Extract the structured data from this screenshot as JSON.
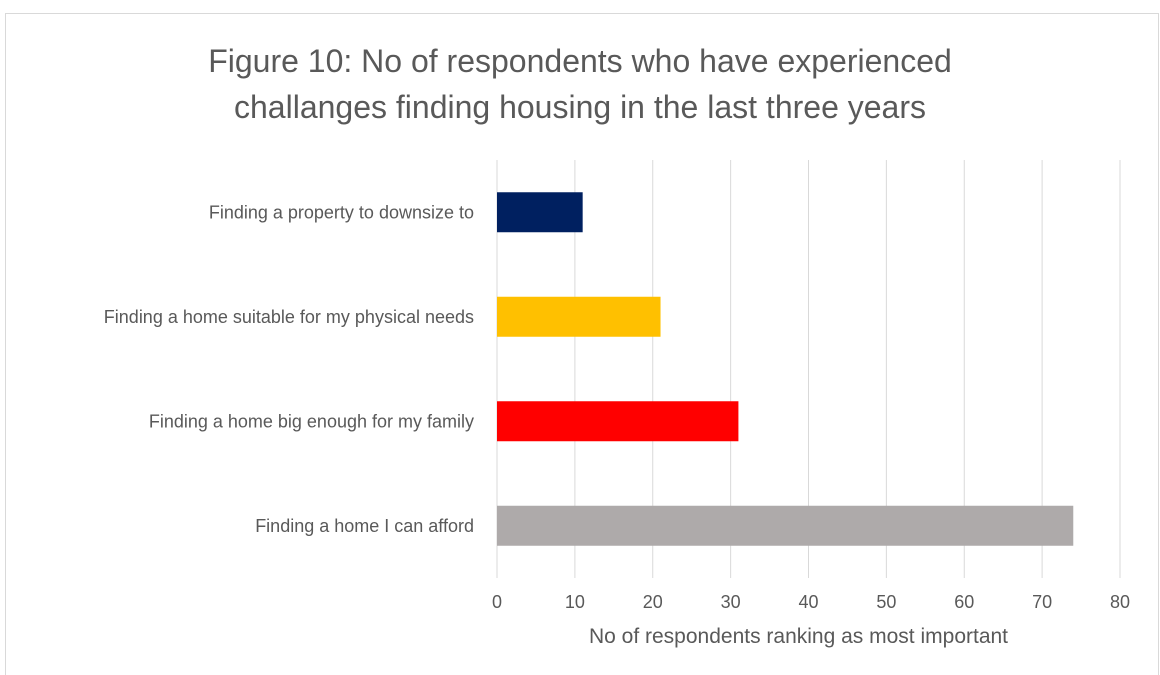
{
  "chart_data": {
    "type": "bar",
    "orientation": "horizontal",
    "title_lines": [
      "Figure 10: No of respondents who have experienced",
      "challanges finding housing in the last three years"
    ],
    "xlabel": "No of respondents ranking as most important",
    "ylabel": "",
    "categories": [
      "Finding a property to downsize to",
      "Finding a home suitable for my physical needs",
      "Finding a home big enough for my family",
      "Finding a home I can afford"
    ],
    "values": [
      11,
      21,
      31,
      74
    ],
    "bar_colors": [
      "#002060",
      "#FFC000",
      "#FF0000",
      "#AEAAAA"
    ],
    "xlim": [
      0,
      80
    ],
    "x_ticks": [
      0,
      10,
      20,
      30,
      40,
      50,
      60,
      70,
      80
    ],
    "grid": "vertical",
    "legend": "none"
  }
}
